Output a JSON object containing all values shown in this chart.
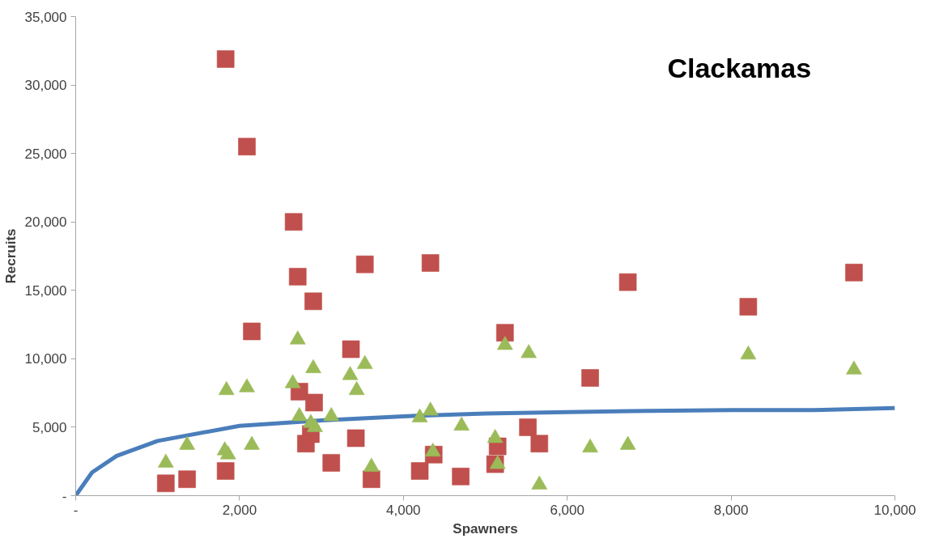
{
  "chart_data": {
    "type": "scatter",
    "title": "Clackamas",
    "xlabel": "Spawners",
    "ylabel": "Recruits",
    "xlim": [
      0,
      10000
    ],
    "ylim": [
      0,
      35000
    ],
    "xticks": [
      {
        "value": 0,
        "label": "-"
      },
      {
        "value": 2000,
        "label": "2,000"
      },
      {
        "value": 4000,
        "label": "4,000"
      },
      {
        "value": 6000,
        "label": "6,000"
      },
      {
        "value": 8000,
        "label": "8,000"
      },
      {
        "value": 10000,
        "label": "10,000"
      }
    ],
    "yticks": [
      {
        "value": 0,
        "label": "-"
      },
      {
        "value": 5000,
        "label": "5,000"
      },
      {
        "value": 10000,
        "label": "10,000"
      },
      {
        "value": 15000,
        "label": "15,000"
      },
      {
        "value": 20000,
        "label": "20,000"
      },
      {
        "value": 25000,
        "label": "25,000"
      },
      {
        "value": 30000,
        "label": "30,000"
      },
      {
        "value": 35000,
        "label": "35,000"
      }
    ],
    "grid": false,
    "series": [
      {
        "type": "line",
        "color": "#4a7ebb",
        "marker": "none",
        "line_style": "solid",
        "x": [
          0,
          200,
          500,
          1000,
          2000,
          3000,
          4000,
          5000,
          6000,
          7000,
          8000,
          9000,
          10000
        ],
        "values": [
          0,
          1700,
          2900,
          4000,
          5100,
          5500,
          5800,
          6000,
          6100,
          6200,
          6250,
          6250,
          6400
        ]
      },
      {
        "color": "#c0504d",
        "marker": "square",
        "x": [
          1830,
          2090,
          2660,
          2710,
          3530,
          2900,
          2150,
          3360,
          2730,
          2910,
          3420,
          2810,
          2870,
          1830,
          1360,
          1100,
          3120,
          3610,
          4330,
          6740,
          9500,
          8210,
          5240,
          6280,
          5520,
          5660,
          4370,
          4200,
          4700,
          5150,
          5120
        ],
        "values": [
          31900,
          25500,
          20000,
          16000,
          16900,
          14200,
          12000,
          10700,
          7600,
          6800,
          4200,
          3800,
          4500,
          1800,
          1200,
          900,
          2400,
          1200,
          17000,
          15600,
          16300,
          13800,
          11900,
          8600,
          5000,
          3800,
          3000,
          1800,
          1400,
          3600,
          2300
        ]
      },
      {
        "color": "#9bbb59",
        "marker": "triangle",
        "x": [
          1100,
          1360,
          1840,
          2090,
          1820,
          1860,
          2150,
          2710,
          2650,
          2900,
          3530,
          3350,
          3430,
          2730,
          2870,
          2920,
          3120,
          3610,
          4330,
          4200,
          4710,
          5120,
          4360,
          5150,
          5240,
          5530,
          5660,
          6280,
          6740,
          8210,
          9500
        ],
        "values": [
          2400,
          3700,
          7700,
          7900,
          3300,
          3000,
          3700,
          11400,
          8200,
          9300,
          9600,
          8800,
          7700,
          5800,
          5300,
          5000,
          5800,
          2100,
          6200,
          5700,
          5100,
          4200,
          3200,
          2300,
          11000,
          10400,
          800,
          3500,
          3700,
          10300,
          9200
        ]
      }
    ]
  }
}
